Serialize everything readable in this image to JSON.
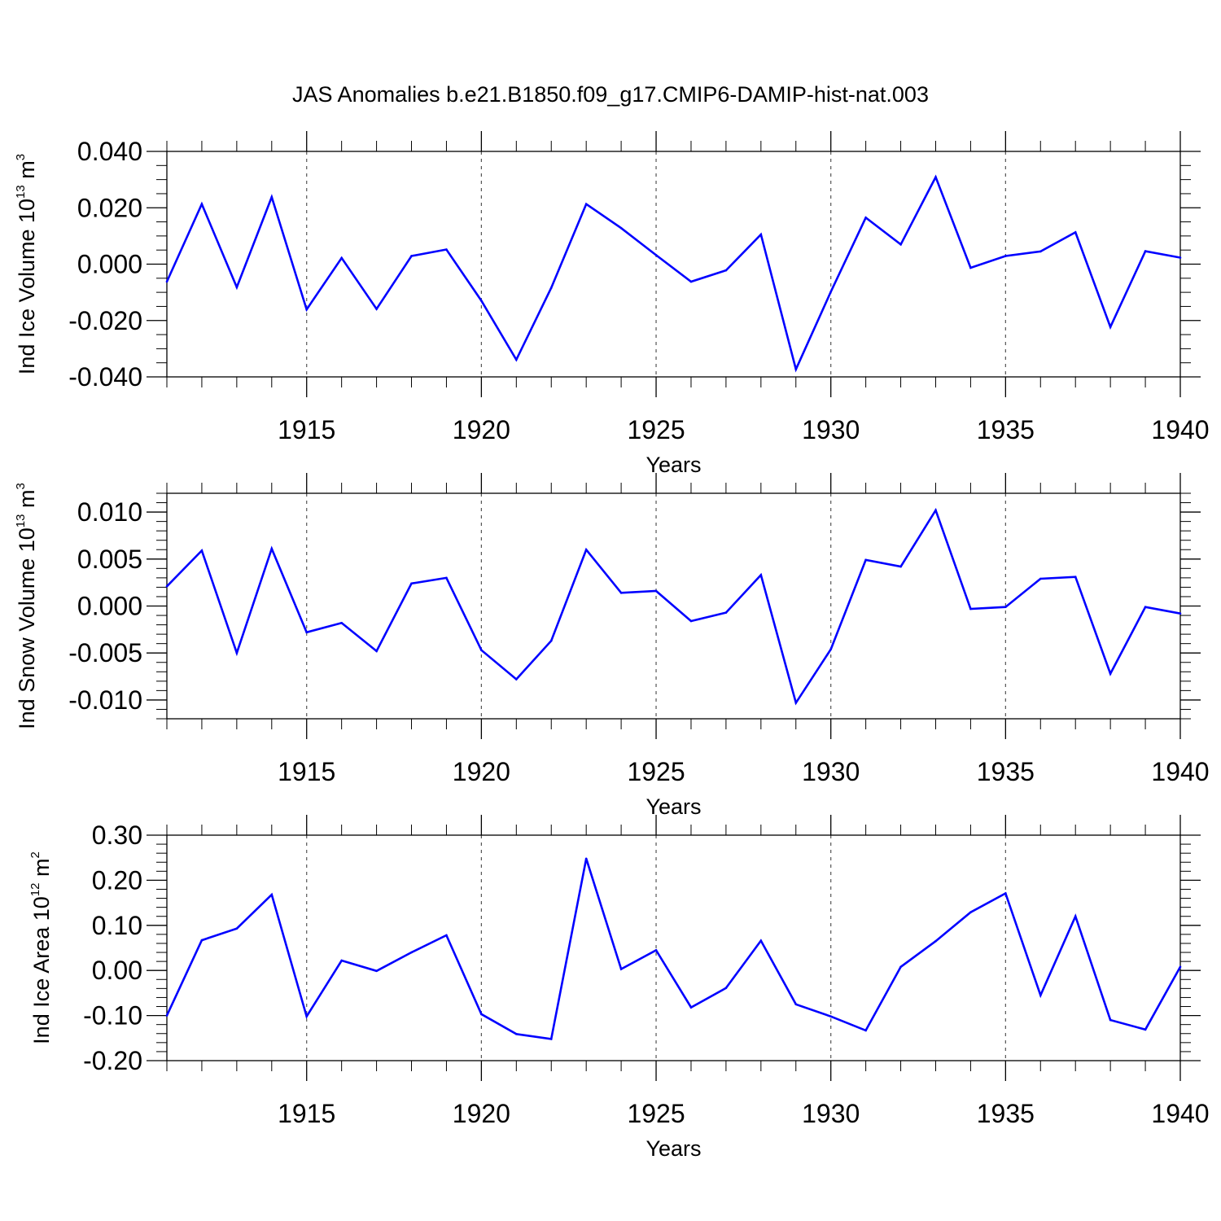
{
  "title": "JAS Anomalies b.e21.B1850.f09_g17.CMIP6-DAMIP-hist-nat.003",
  "colors": {
    "line": "#0000ff",
    "axis": "#000000",
    "grid": "#555555"
  },
  "chart_data": [
    {
      "type": "line",
      "ylabel": {
        "text": "Ind Ice Volume 10",
        "exponent": "13",
        "unit": " m",
        "unit_exponent": "3"
      },
      "xlabel": "Years",
      "xlim": [
        1911,
        1940
      ],
      "ylim": [
        -0.04,
        0.04
      ],
      "major_yticks": [
        -0.04,
        -0.02,
        0.0,
        0.02,
        0.04
      ],
      "ytick_labels": [
        "-0.040",
        "-0.020",
        "0.000",
        "0.020",
        "0.040"
      ],
      "minor_ystep": 0.005,
      "xticks": [
        1915,
        1920,
        1925,
        1930,
        1935,
        1940
      ],
      "xtick_labels": [
        "1915",
        "1920",
        "1925",
        "1930",
        "1935",
        "1940"
      ],
      "grid": "vertical dashed at major x ticks",
      "x": [
        1911,
        1912,
        1913,
        1914,
        1915,
        1916,
        1917,
        1918,
        1919,
        1920,
        1921,
        1922,
        1923,
        1924,
        1925,
        1926,
        1927,
        1928,
        1929,
        1930,
        1931,
        1932,
        1933,
        1934,
        1935,
        1936,
        1937,
        1938,
        1939,
        1940
      ],
      "values": [
        -0.0062,
        0.0213,
        -0.0082,
        0.0238,
        -0.0161,
        0.0022,
        -0.0159,
        0.0029,
        0.0052,
        -0.013,
        -0.0339,
        -0.0084,
        0.0213,
        0.0128,
        0.0032,
        -0.0062,
        -0.0022,
        0.0105,
        -0.0373,
        -0.0098,
        0.0165,
        0.007,
        0.0309,
        -0.0013,
        0.0029,
        0.0045,
        0.0113,
        -0.0223,
        0.0046,
        0.0023
      ]
    },
    {
      "type": "line",
      "ylabel": {
        "text": "Ind Snow Volume 10",
        "exponent": "13",
        "unit": " m",
        "unit_exponent": "3"
      },
      "xlabel": "Years",
      "xlim": [
        1911,
        1940
      ],
      "ylim": [
        -0.012,
        0.012
      ],
      "major_yticks": [
        -0.01,
        -0.005,
        0.0,
        0.005,
        0.01
      ],
      "ytick_labels": [
        "-0.010",
        "-0.005",
        "0.000",
        "0.005",
        "0.010"
      ],
      "minor_ystep": 0.001,
      "xticks": [
        1915,
        1920,
        1925,
        1930,
        1935,
        1940
      ],
      "xtick_labels": [
        "1915",
        "1920",
        "1925",
        "1930",
        "1935",
        "1940"
      ],
      "grid": "vertical dashed at major x ticks",
      "x": [
        1911,
        1912,
        1913,
        1914,
        1915,
        1916,
        1917,
        1918,
        1919,
        1920,
        1921,
        1922,
        1923,
        1924,
        1925,
        1926,
        1927,
        1928,
        1929,
        1930,
        1931,
        1932,
        1933,
        1934,
        1935,
        1936,
        1937,
        1938,
        1939,
        1940
      ],
      "values": [
        0.0021,
        0.0059,
        -0.005,
        0.0061,
        -0.0028,
        -0.0018,
        -0.0048,
        0.0024,
        0.003,
        -0.0047,
        -0.0078,
        -0.0037,
        0.006,
        0.0014,
        0.0016,
        -0.0016,
        -0.0007,
        0.0033,
        -0.0103,
        -0.0046,
        0.0049,
        0.0042,
        0.0102,
        -0.0003,
        -0.0001,
        0.0029,
        0.0031,
        -0.0072,
        -0.0001,
        -0.0008
      ]
    },
    {
      "type": "line",
      "ylabel": {
        "text": "Ind Ice Area 10",
        "exponent": "12",
        "unit": " m",
        "unit_exponent": "2"
      },
      "xlabel": "Years",
      "xlim": [
        1911,
        1940
      ],
      "ylim": [
        -0.2,
        0.3
      ],
      "major_yticks": [
        -0.2,
        -0.1,
        0.0,
        0.1,
        0.2,
        0.3
      ],
      "ytick_labels": [
        "-0.20",
        "-0.10",
        "0.00",
        "0.10",
        "0.20",
        "0.30"
      ],
      "minor_ystep": 0.02,
      "xticks": [
        1915,
        1920,
        1925,
        1930,
        1935,
        1940
      ],
      "xtick_labels": [
        "1915",
        "1920",
        "1925",
        "1930",
        "1935",
        "1940"
      ],
      "grid": "vertical dashed at major x ticks",
      "x": [
        1911,
        1912,
        1913,
        1914,
        1915,
        1916,
        1917,
        1918,
        1919,
        1920,
        1921,
        1922,
        1923,
        1924,
        1925,
        1926,
        1927,
        1928,
        1929,
        1930,
        1931,
        1932,
        1933,
        1934,
        1935,
        1936,
        1937,
        1938,
        1939,
        1940
      ],
      "values": [
        -0.1,
        0.067,
        0.093,
        0.168,
        -0.102,
        0.022,
        -0.001,
        0.04,
        0.078,
        -0.097,
        -0.141,
        -0.152,
        0.248,
        0.003,
        0.045,
        -0.082,
        -0.039,
        0.066,
        -0.075,
        -0.102,
        -0.133,
        0.008,
        0.065,
        0.129,
        0.171,
        -0.055,
        0.12,
        -0.11,
        -0.131,
        0.008
      ]
    }
  ]
}
